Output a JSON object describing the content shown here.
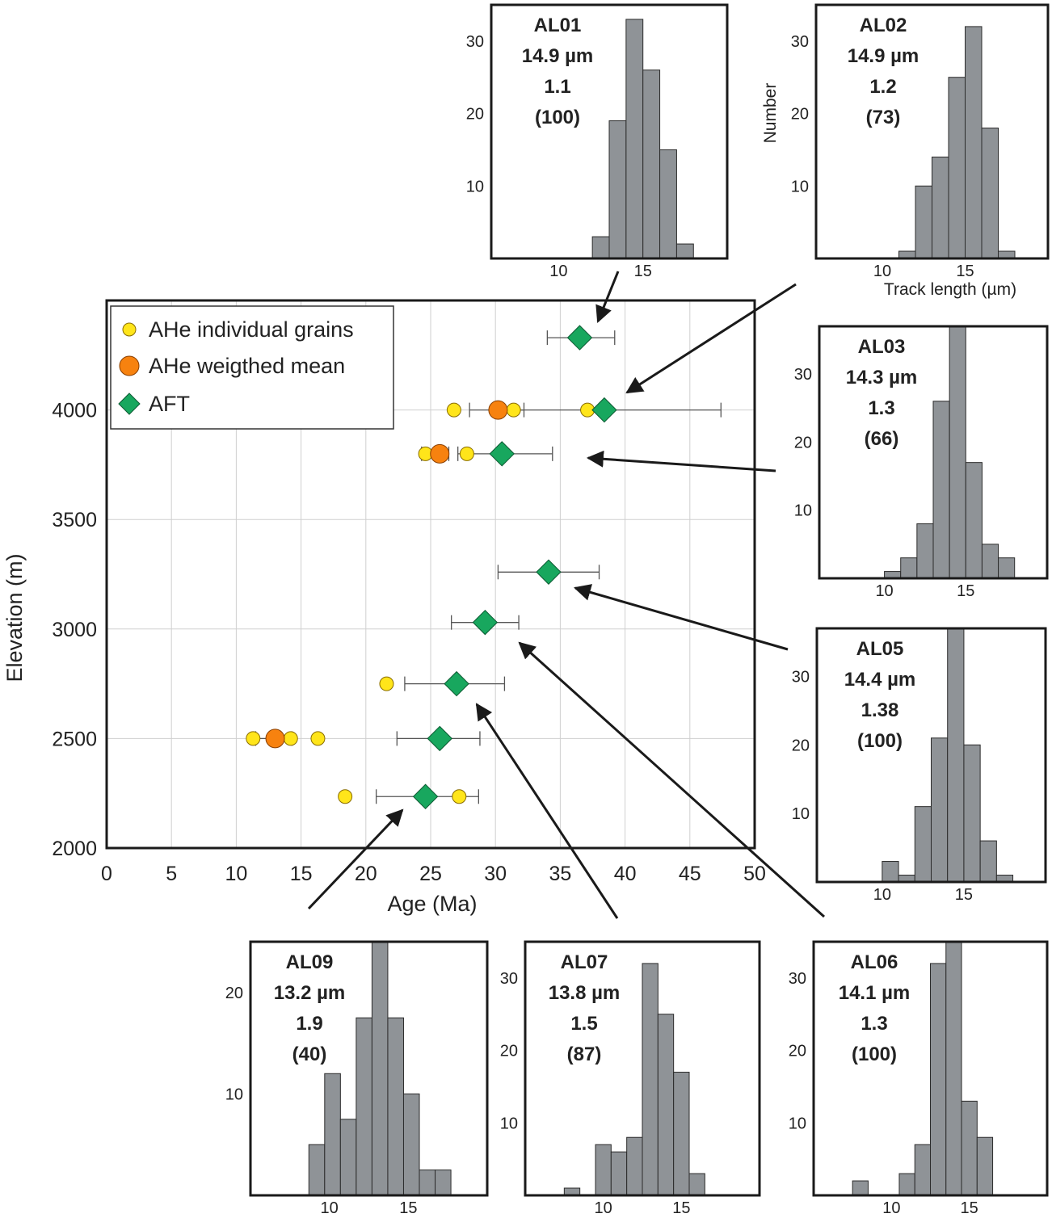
{
  "chart_data": [
    {
      "type": "scatter",
      "xlabel": "Age (Ma)",
      "ylabel": "Elevation (m)",
      "xlim": [
        0,
        50
      ],
      "ylim": [
        2000,
        4500
      ],
      "xticks": [
        0,
        5,
        10,
        15,
        20,
        25,
        30,
        35,
        40,
        45,
        50
      ],
      "yticks": [
        2000,
        2500,
        3000,
        3500,
        4000
      ],
      "grid": true,
      "legend": {
        "position": "top-left",
        "entries": [
          {
            "label": "AHe individual grains",
            "marker": "small-circle",
            "color": "#ffe51a"
          },
          {
            "label": "AHe weigthed mean",
            "marker": "circle",
            "color": "#f7820f"
          },
          {
            "label": "AFT",
            "marker": "diamond",
            "color": "#18a75e"
          }
        ]
      },
      "series": [
        {
          "name": "AHe individual grains",
          "points": [
            {
              "x": 26.8,
              "y": 4000
            },
            {
              "x": 31.4,
              "y": 4000
            },
            {
              "x": 37.1,
              "y": 4000
            },
            {
              "x": 24.6,
              "y": 3800
            },
            {
              "x": 27.8,
              "y": 3800
            },
            {
              "x": 21.6,
              "y": 2750
            },
            {
              "x": 11.3,
              "y": 2500
            },
            {
              "x": 14.2,
              "y": 2500
            },
            {
              "x": 16.3,
              "y": 2500
            },
            {
              "x": 18.4,
              "y": 2235
            },
            {
              "x": 27.2,
              "y": 2235
            }
          ],
          "error_bars": [
            {
              "y": 4000,
              "x_low": 28.0,
              "x_high": 32.2
            },
            {
              "y": 3800,
              "x_low": 24.3,
              "x_high": 26.4
            },
            {
              "y": 2500,
              "x_low": 11.5,
              "x_high": 14.3
            }
          ]
        },
        {
          "name": "AHe weigthed mean",
          "points": [
            {
              "x": 30.2,
              "y": 4000
            },
            {
              "x": 25.7,
              "y": 3800
            },
            {
              "x": 13.0,
              "y": 2500
            }
          ]
        },
        {
          "name": "AFT",
          "points": [
            {
              "x": 36.5,
              "y": 4330,
              "x_low": 34.0,
              "x_high": 39.2
            },
            {
              "x": 38.4,
              "y": 4000,
              "x_low": 30.2,
              "x_high": 47.4
            },
            {
              "x": 30.5,
              "y": 3800,
              "x_low": 27.1,
              "x_high": 34.4
            },
            {
              "x": 34.1,
              "y": 3260,
              "x_low": 30.2,
              "x_high": 38.0
            },
            {
              "x": 29.2,
              "y": 3030,
              "x_low": 26.6,
              "x_high": 31.8
            },
            {
              "x": 27.0,
              "y": 2750,
              "x_low": 23.0,
              "x_high": 30.7
            },
            {
              "x": 25.7,
              "y": 2500,
              "x_low": 22.4,
              "x_high": 28.8
            },
            {
              "x": 24.6,
              "y": 2235,
              "x_low": 20.8,
              "x_high": 28.7
            }
          ]
        }
      ]
    },
    {
      "type": "bar",
      "sample": "AL01",
      "mean": "14.9 µm",
      "sd": "1.1",
      "n": "(100)",
      "xlim": [
        6,
        20
      ],
      "ylim": [
        0,
        35
      ],
      "xticks": [
        10,
        15
      ],
      "yticks": [
        10,
        20,
        30
      ],
      "bins": [
        [
          12,
          13,
          3
        ],
        [
          13,
          14,
          19
        ],
        [
          14,
          15,
          33
        ],
        [
          15,
          16,
          26
        ],
        [
          16,
          17,
          15
        ],
        [
          17,
          18,
          2
        ]
      ]
    },
    {
      "type": "bar",
      "sample": "AL02",
      "mean": "14.9 µm",
      "sd": "1.2",
      "n": "(73)",
      "ylabel": "Number",
      "xlabel": "Track length (µm)",
      "xlim": [
        6,
        20
      ],
      "ylim": [
        0,
        35
      ],
      "xticks": [
        10,
        15
      ],
      "yticks": [
        10,
        20,
        30
      ],
      "bins": [
        [
          11,
          12,
          1
        ],
        [
          12,
          13,
          10
        ],
        [
          13,
          14,
          14
        ],
        [
          14,
          15,
          25
        ],
        [
          15,
          16,
          32
        ],
        [
          16,
          17,
          18
        ],
        [
          17,
          18,
          1
        ]
      ]
    },
    {
      "type": "bar",
      "sample": "AL03",
      "mean": "14.3 µm",
      "sd": "1.3",
      "n": "(66)",
      "xlim": [
        6,
        20
      ],
      "ylim": [
        0,
        37
      ],
      "xticks": [
        10,
        15
      ],
      "yticks": [
        10,
        20,
        30
      ],
      "bins": [
        [
          10,
          11,
          1
        ],
        [
          11,
          12,
          3
        ],
        [
          12,
          13,
          8
        ],
        [
          13,
          14,
          26
        ],
        [
          14,
          15,
          37
        ],
        [
          15,
          16,
          17
        ],
        [
          16,
          17,
          5
        ],
        [
          17,
          18,
          3
        ]
      ]
    },
    {
      "type": "bar",
      "sample": "AL05",
      "mean": "14.4 µm",
      "sd": "1.38",
      "n": "(100)",
      "xlim": [
        6,
        20
      ],
      "ylim": [
        0,
        37
      ],
      "xticks": [
        10,
        15
      ],
      "yticks": [
        10,
        20,
        30
      ],
      "bins": [
        [
          10,
          11,
          3
        ],
        [
          11,
          12,
          1
        ],
        [
          12,
          13,
          11
        ],
        [
          13,
          14,
          21
        ],
        [
          14,
          15,
          37
        ],
        [
          15,
          16,
          20
        ],
        [
          16,
          17,
          6
        ],
        [
          17,
          18,
          1
        ]
      ]
    },
    {
      "type": "bar",
      "sample": "AL09",
      "mean": "13.2 µm",
      "sd": "1.9",
      "n": "(40)",
      "xlim": [
        5,
        20
      ],
      "ylim": [
        0,
        25
      ],
      "xticks": [
        10,
        15
      ],
      "yticks": [
        10,
        20
      ],
      "bins": [
        [
          8.7,
          9.7,
          5
        ],
        [
          9.7,
          10.7,
          12
        ],
        [
          10.7,
          11.7,
          7.5
        ],
        [
          11.7,
          12.7,
          17.5
        ],
        [
          12.7,
          13.7,
          25
        ],
        [
          13.7,
          14.7,
          17.5
        ],
        [
          14.7,
          15.7,
          10
        ],
        [
          15.7,
          16.7,
          2.5
        ],
        [
          16.7,
          17.7,
          2.5
        ]
      ]
    },
    {
      "type": "bar",
      "sample": "AL07",
      "mean": "13.8 µm",
      "sd": "1.5",
      "n": "(87)",
      "xlim": [
        5,
        20
      ],
      "ylim": [
        0,
        35
      ],
      "xticks": [
        10,
        15
      ],
      "yticks": [
        10,
        20,
        30
      ],
      "bins": [
        [
          7.5,
          8.5,
          1
        ],
        [
          9.5,
          10.5,
          7
        ],
        [
          10.5,
          11.5,
          6
        ],
        [
          11.5,
          12.5,
          8
        ],
        [
          12.5,
          13.5,
          32
        ],
        [
          13.5,
          14.5,
          25
        ],
        [
          14.5,
          15.5,
          17
        ],
        [
          15.5,
          16.5,
          3
        ]
      ]
    },
    {
      "type": "bar",
      "sample": "AL06",
      "mean": "14.1 µm",
      "sd": "1.3",
      "n": "(100)",
      "xlim": [
        5,
        20
      ],
      "ylim": [
        0,
        35
      ],
      "xticks": [
        10,
        15
      ],
      "yticks": [
        10,
        20,
        30
      ],
      "bins": [
        [
          7.5,
          8.5,
          2
        ],
        [
          10.5,
          11.5,
          3
        ],
        [
          11.5,
          12.5,
          7
        ],
        [
          12.5,
          13.5,
          32
        ],
        [
          13.5,
          14.5,
          35
        ],
        [
          14.5,
          15.5,
          13
        ],
        [
          15.5,
          16.5,
          8
        ]
      ]
    }
  ]
}
